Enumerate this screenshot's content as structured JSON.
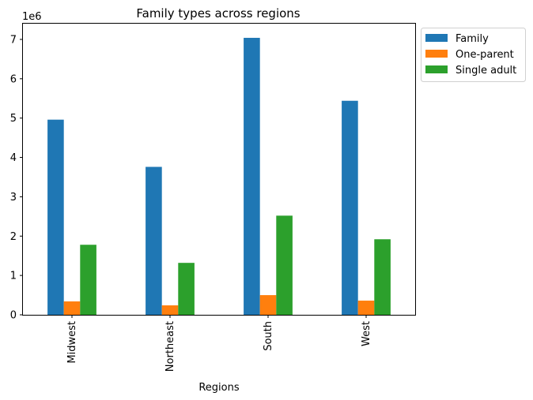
{
  "chart_data": {
    "type": "bar",
    "title": "Family types across regions",
    "xlabel": "Regions",
    "ylabel": "",
    "offset_label": "1e6",
    "categories": [
      "Midwest",
      "Northeast",
      "South",
      "West"
    ],
    "series": [
      {
        "name": "Family",
        "color": "#1f77b4",
        "values": [
          4960000,
          3760000,
          7040000,
          5440000
        ]
      },
      {
        "name": "One-parent",
        "color": "#ff7f0e",
        "values": [
          340000,
          240000,
          500000,
          360000
        ]
      },
      {
        "name": "Single adult",
        "color": "#2ca02c",
        "values": [
          1780000,
          1320000,
          2520000,
          1920000
        ]
      }
    ],
    "ylim": [
      0,
      7400000
    ],
    "yticks": [
      0,
      1,
      2,
      3,
      4,
      5,
      6,
      7
    ],
    "grid": false,
    "legend": "upper-left-outside"
  }
}
